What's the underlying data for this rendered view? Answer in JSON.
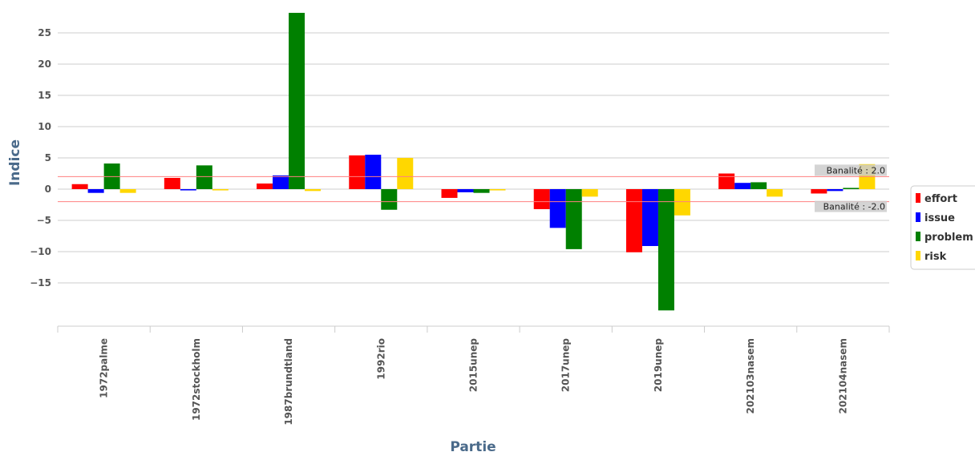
{
  "chart_data": {
    "type": "bar",
    "title": "",
    "xlabel": "Partie",
    "ylabel": "Indice",
    "ylim": [
      -22,
      28
    ],
    "yticks": [
      -15,
      -10,
      -5,
      0,
      5,
      10,
      15,
      20,
      25
    ],
    "categories": [
      "1972palme",
      "1972stockholm",
      "1987brundtland",
      "1992rio",
      "2015unep",
      "2017unep",
      "2019unep",
      "202103nasem",
      "202104nasem"
    ],
    "series": [
      {
        "name": "effort",
        "color": "#ff0000",
        "values": [
          0.8,
          1.8,
          0.9,
          5.4,
          -1.4,
          -3.2,
          -10.1,
          2.5,
          -0.7
        ]
      },
      {
        "name": "issue",
        "color": "#0000ff",
        "values": [
          -0.6,
          -0.2,
          2.2,
          5.5,
          -0.5,
          -6.2,
          -9.1,
          1.0,
          -0.3
        ]
      },
      {
        "name": "problem",
        "color": "#008000",
        "values": [
          4.1,
          3.8,
          28.2,
          -3.3,
          -0.6,
          -9.6,
          -19.4,
          1.1,
          0.2
        ]
      },
      {
        "name": "risk",
        "color": "#ffd700",
        "values": [
          -0.6,
          -0.2,
          -0.3,
          5.0,
          -0.2,
          -1.2,
          -4.2,
          -1.2,
          4.0
        ]
      }
    ],
    "thresholds": [
      {
        "value": 2.0,
        "label": "Banalité : 2.0"
      },
      {
        "value": -2.0,
        "label": "Banalité : -2.0"
      }
    ],
    "grid": true,
    "legend": "right"
  }
}
